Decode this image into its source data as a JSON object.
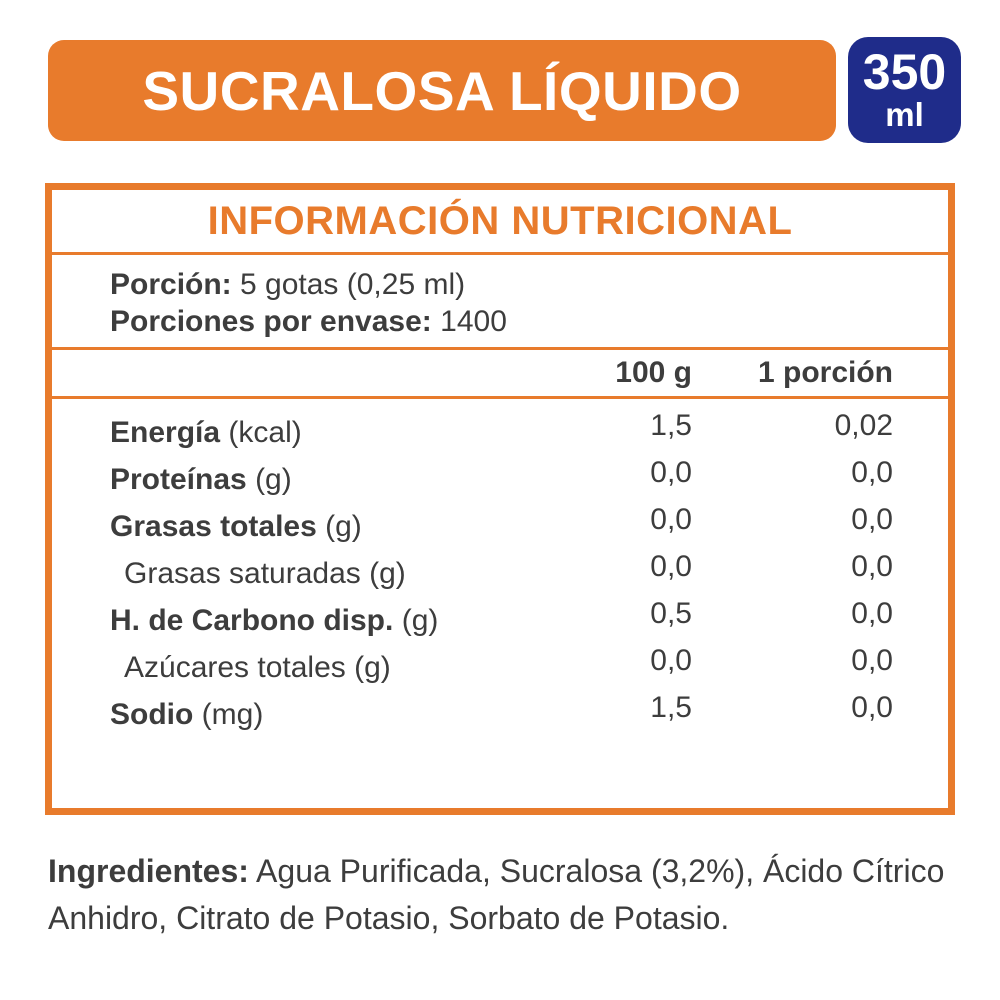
{
  "header": {
    "title": "SUCRALOSA LÍQUIDO",
    "volume_value": "350",
    "volume_unit": "ml"
  },
  "colors": {
    "orange": "#e87b2c",
    "navy": "#1f2c8a",
    "text": "#3d3d3d"
  },
  "nutrition": {
    "title": "INFORMACIÓN NUTRICIONAL",
    "serving": {
      "label": "Porción:",
      "value": "5 gotas (0,25 ml)"
    },
    "servings_per_container": {
      "label": "Porciones por envase:",
      "value": "1400"
    },
    "columns": [
      "100 g",
      "1 porción"
    ],
    "rows": [
      {
        "name": "Energía",
        "unit": "(kcal)",
        "bold": true,
        "indent": false,
        "per100": "1,5",
        "perPortion": "0,02"
      },
      {
        "name": "Proteínas",
        "unit": "(g)",
        "bold": true,
        "indent": false,
        "per100": "0,0",
        "perPortion": "0,0"
      },
      {
        "name": "Grasas totales",
        "unit": "(g)",
        "bold": true,
        "indent": false,
        "per100": "0,0",
        "perPortion": "0,0"
      },
      {
        "name": "Grasas saturadas",
        "unit": "(g)",
        "bold": false,
        "indent": true,
        "per100": "0,0",
        "perPortion": "0,0"
      },
      {
        "name": "H. de Carbono disp.",
        "unit": "(g)",
        "bold": true,
        "indent": false,
        "per100": "0,5",
        "perPortion": "0,0"
      },
      {
        "name": "Azúcares totales",
        "unit": "(g)",
        "bold": false,
        "indent": true,
        "per100": "0,0",
        "perPortion": "0,0"
      },
      {
        "name": "Sodio",
        "unit": "(mg)",
        "bold": true,
        "indent": false,
        "per100": "1,5",
        "perPortion": "0,0"
      }
    ]
  },
  "ingredients": {
    "label": "Ingredientes:",
    "text": " Agua Purificada, Sucralosa (3,2%), Ácido Cítrico Anhidro, Citrato de Potasio, Sorbato de Potasio."
  }
}
